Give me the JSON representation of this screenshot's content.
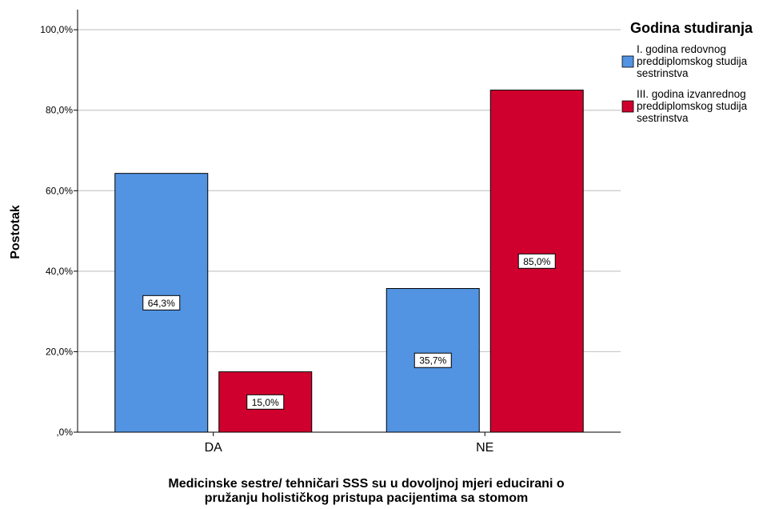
{
  "chart_data": {
    "type": "bar",
    "categories": [
      "DA",
      "NE"
    ],
    "series": [
      {
        "name": "I. godina redovnog preddiplomskog studija sestrinstva",
        "legend_lines": [
          "I. godina redovnog",
          "preddiplomskog studija",
          "sestrinstva"
        ],
        "values": [
          64.3,
          35.7
        ],
        "labels": [
          "64,3%",
          "35,7%"
        ],
        "color": "#5294e2"
      },
      {
        "name": "III. godina izvanrednog preddiplomskog studija sestrinstva",
        "legend_lines": [
          "III. godina izvanrednog",
          "preddiplomskog studija",
          "sestrinstva"
        ],
        "values": [
          15.0,
          85.0
        ],
        "labels": [
          "15,0%",
          "85,0%"
        ],
        "color": "#d0002e"
      }
    ],
    "ylabel": "Postotak",
    "xlabel_lines": [
      "Medicinske sestre/ tehničari SSS su u dovoljnoj mjeri educirani o",
      "pružanju holističkog pristupa pacijentima sa stomom"
    ],
    "ylim": [
      0,
      105
    ],
    "yticks": [
      0,
      20,
      40,
      60,
      80,
      100
    ],
    "ytick_labels": [
      ",0%",
      "20,0%",
      "40,0%",
      "60,0%",
      "80,0%",
      "100,0%"
    ],
    "legend_title": "Godina studiranja",
    "legend_position": "top-right",
    "grid": true
  }
}
